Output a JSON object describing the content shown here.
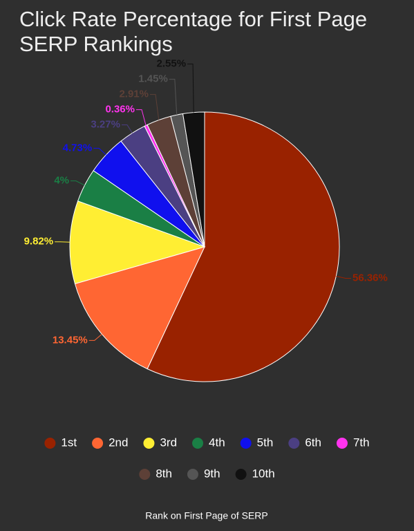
{
  "chart_data": {
    "type": "pie",
    "title": "Click Rate Percentage for First Page SERP Rankings",
    "legend_title": "Rank on First Page of SERP",
    "categories": [
      "1st",
      "2nd",
      "3rd",
      "4th",
      "5th",
      "6th",
      "7th",
      "8th",
      "9th",
      "10th"
    ],
    "values": [
      56.36,
      13.45,
      9.82,
      4,
      4.73,
      3.27,
      0.36,
      2.91,
      1.45,
      2.55
    ],
    "value_labels": [
      "56.36%",
      "13.45%",
      "9.82%",
      "4%",
      "4.73%",
      "3.27%",
      "0.36%",
      "2.91%",
      "1.45%",
      "2.55%"
    ],
    "colors": [
      "#992200",
      "#ff6633",
      "#ffee33",
      "#1a7f45",
      "#1010ee",
      "#4b3f82",
      "#ff33ee",
      "#5d4037",
      "#555555",
      "#111111"
    ]
  }
}
